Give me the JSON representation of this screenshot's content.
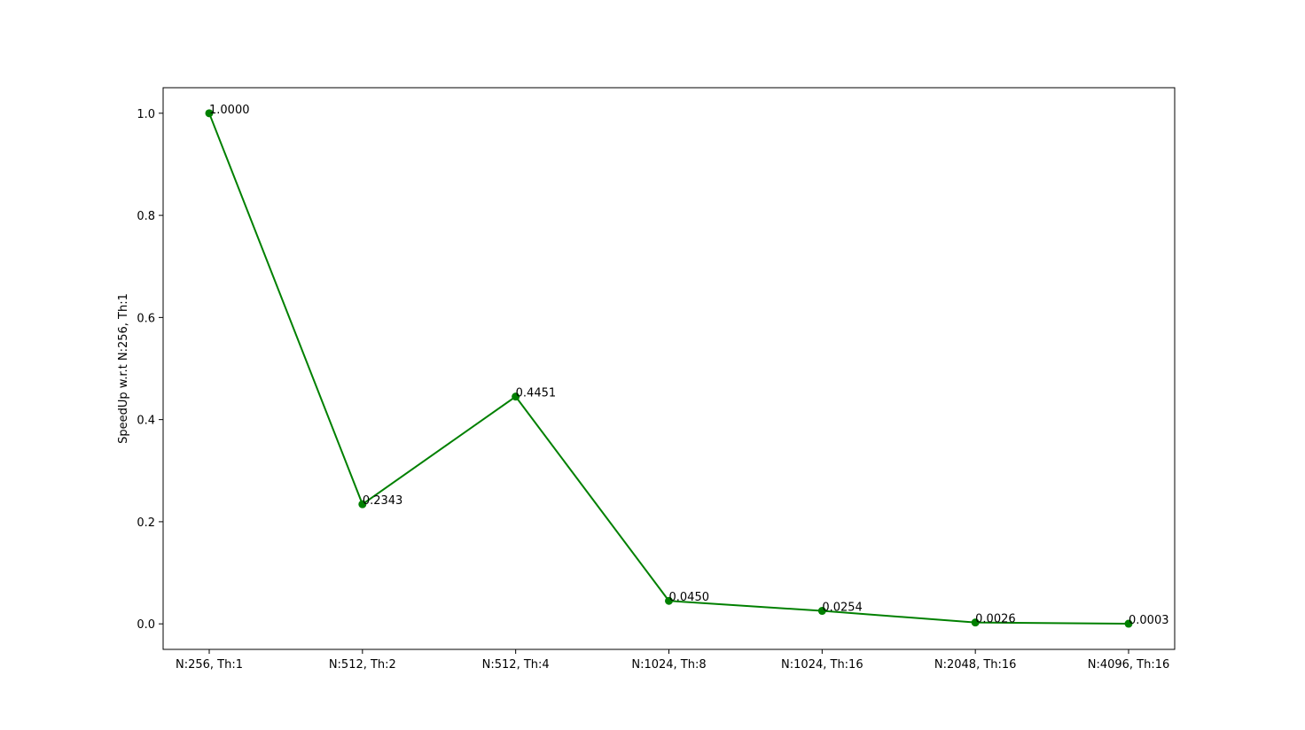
{
  "chart_data": {
    "type": "line",
    "title": "",
    "xlabel": "",
    "ylabel": "SpeedUp w.r.t N:256, Th:1",
    "categories": [
      "N:256, Th:1",
      "N:512, Th:2",
      "N:512, Th:4",
      "N:1024, Th:8",
      "N:1024, Th:16",
      "N:2048, Th:16",
      "N:4096, Th:16"
    ],
    "series": [
      {
        "values": [
          1.0,
          0.2343,
          0.4451,
          0.045,
          0.0254,
          0.0026,
          0.0003
        ],
        "color": "#008000",
        "marker": "circle"
      }
    ],
    "data_labels": [
      "1.0000",
      "0.2343",
      "0.4451",
      "0.0450",
      "0.0254",
      "0.0026",
      "0.0003"
    ],
    "ylim": [
      -0.05,
      1.05
    ],
    "yticks": [
      0.0,
      0.2,
      0.4,
      0.6,
      0.8,
      1.0
    ],
    "ytick_labels": [
      "0.0",
      "0.2",
      "0.4",
      "0.6",
      "0.8",
      "1.0"
    ],
    "grid": false,
    "legend": "none"
  }
}
